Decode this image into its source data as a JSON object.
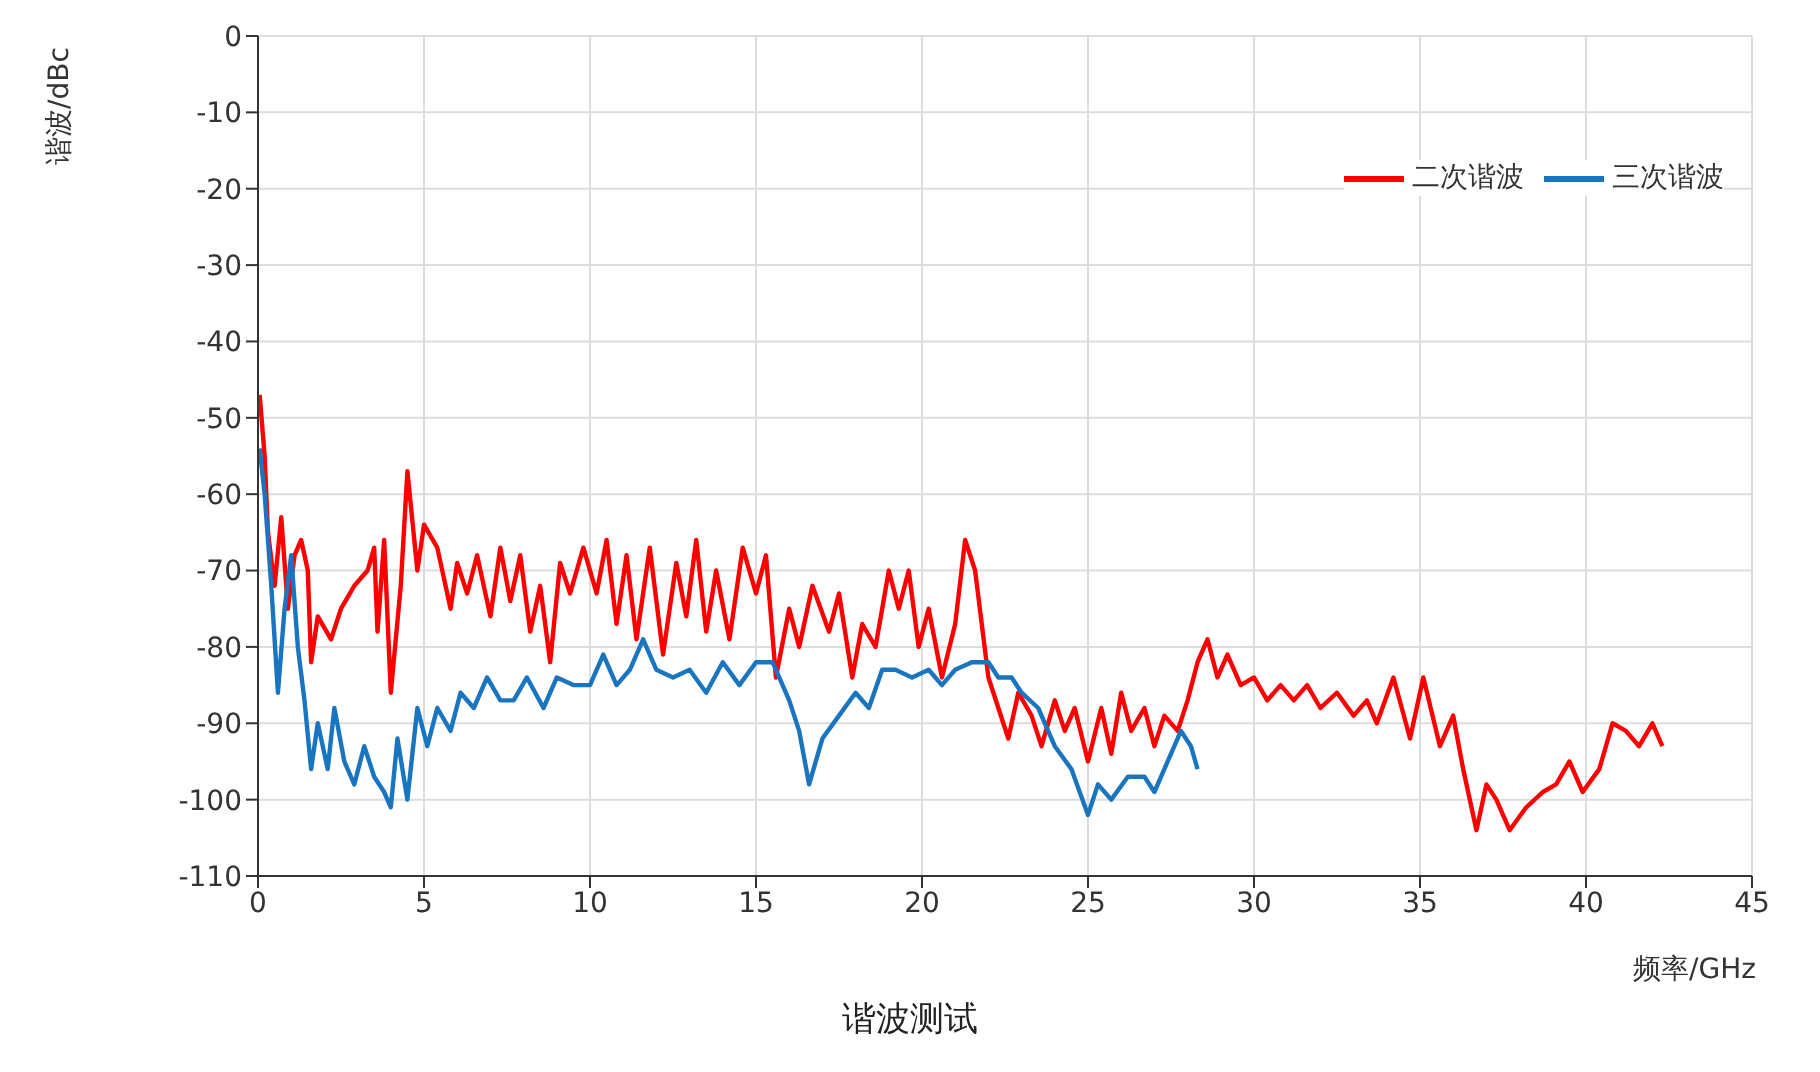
{
  "chart_data": {
    "type": "line",
    "title": "谐波测试",
    "xlabel": "频率/GHz",
    "ylabel": "谐波/dBc",
    "xlim": [
      0,
      45
    ],
    "xticks": [
      0,
      5,
      10,
      15,
      20,
      25,
      30,
      35,
      40,
      45
    ],
    "ylim": [
      -110,
      0
    ],
    "yticks": [
      0,
      -10,
      -20,
      -30,
      -40,
      -50,
      -60,
      -70,
      -80,
      -90,
      -100,
      -110
    ],
    "grid": true,
    "legend": "top right",
    "marker": "none",
    "line_style": "solid",
    "series": [
      {
        "name": "二次谐波",
        "color": "#ff0000",
        "x": [
          0.05,
          0.2,
          0.3,
          0.5,
          0.7,
          0.9,
          1.1,
          1.3,
          1.5,
          1.6,
          1.8,
          2.2,
          2.5,
          2.9,
          3.3,
          3.5,
          3.6,
          3.8,
          4.0,
          4.3,
          4.5,
          4.8,
          5.0,
          5.4,
          5.8,
          6.0,
          6.3,
          6.6,
          7.0,
          7.3,
          7.6,
          7.9,
          8.2,
          8.5,
          8.8,
          9.1,
          9.4,
          9.8,
          10.2,
          10.5,
          10.8,
          11.1,
          11.4,
          11.8,
          12.2,
          12.6,
          12.9,
          13.2,
          13.5,
          13.8,
          14.2,
          14.6,
          15.0,
          15.3,
          15.6,
          16.0,
          16.3,
          16.7,
          17.2,
          17.5,
          17.9,
          18.2,
          18.6,
          19.0,
          19.3,
          19.6,
          19.9,
          20.2,
          20.6,
          21.0,
          21.3,
          21.6,
          22.0,
          22.3,
          22.6,
          22.9,
          23.3,
          23.6,
          24.0,
          24.3,
          24.6,
          25.0,
          25.4,
          25.7,
          26.0,
          26.3,
          26.7,
          27.0,
          27.3,
          27.7,
          28.0,
          28.3,
          28.6,
          28.9,
          29.2,
          29.6,
          30.0,
          30.4,
          30.8,
          31.2,
          31.6,
          32.0,
          32.5,
          33.0,
          33.4,
          33.7,
          34.2,
          34.7,
          35.1,
          35.6,
          36.0,
          36.3,
          36.7,
          37.0,
          37.3,
          37.7,
          38.2,
          38.7,
          39.1,
          39.5,
          39.9,
          40.4,
          40.8,
          41.2,
          41.6,
          42.0,
          42.3
        ],
        "values": [
          -47,
          -55,
          -65,
          -72,
          -63,
          -75,
          -68,
          -66,
          -70,
          -82,
          -76,
          -79,
          -75,
          -72,
          -70,
          -67,
          -78,
          -66,
          -86,
          -72,
          -57,
          -70,
          -64,
          -67,
          -75,
          -69,
          -73,
          -68,
          -76,
          -67,
          -74,
          -68,
          -78,
          -72,
          -82,
          -69,
          -73,
          -67,
          -73,
          -66,
          -77,
          -68,
          -79,
          -67,
          -81,
          -69,
          -76,
          -66,
          -78,
          -70,
          -79,
          -67,
          -73,
          -68,
          -84,
          -75,
          -80,
          -72,
          -78,
          -73,
          -84,
          -77,
          -80,
          -70,
          -75,
          -70,
          -80,
          -75,
          -84,
          -77,
          -66,
          -70,
          -84,
          -88,
          -92,
          -86,
          -89,
          -93,
          -87,
          -91,
          -88,
          -95,
          -88,
          -94,
          -86,
          -91,
          -88,
          -93,
          -89,
          -91,
          -87,
          -82,
          -79,
          -84,
          -81,
          -85,
          -84,
          -87,
          -85,
          -87,
          -85,
          -88,
          -86,
          -89,
          -87,
          -90,
          -84,
          -92,
          -84,
          -93,
          -89,
          -96,
          -104,
          -98,
          -100,
          -104,
          -101,
          -99,
          -98,
          -95,
          -99,
          -96,
          -90,
          -91,
          -93,
          -90,
          -93
        ]
      },
      {
        "name": "三次谐波",
        "color": "#1a75c0",
        "x": [
          0.05,
          0.2,
          0.4,
          0.6,
          0.8,
          1.0,
          1.2,
          1.4,
          1.6,
          1.8,
          2.1,
          2.3,
          2.6,
          2.9,
          3.2,
          3.5,
          3.8,
          4.0,
          4.2,
          4.5,
          4.8,
          5.1,
          5.4,
          5.8,
          6.1,
          6.5,
          6.9,
          7.3,
          7.7,
          8.1,
          8.6,
          9.0,
          9.5,
          10.0,
          10.4,
          10.8,
          11.2,
          11.6,
          12.0,
          12.5,
          13.0,
          13.5,
          14.0,
          14.5,
          15.0,
          15.5,
          16.0,
          16.3,
          16.6,
          17.0,
          17.5,
          18.0,
          18.4,
          18.8,
          19.2,
          19.7,
          20.2,
          20.6,
          21.0,
          21.5,
          22.0,
          22.3,
          22.7,
          23.0,
          23.5,
          24.0,
          24.5,
          25.0,
          25.3,
          25.7,
          26.2,
          26.7,
          27.0,
          27.4,
          27.8,
          28.1,
          28.3
        ],
        "values": [
          -54,
          -60,
          -72,
          -86,
          -75,
          -68,
          -80,
          -87,
          -96,
          -90,
          -96,
          -88,
          -95,
          -98,
          -93,
          -97,
          -99,
          -101,
          -92,
          -100,
          -88,
          -93,
          -88,
          -91,
          -86,
          -88,
          -84,
          -87,
          -87,
          -84,
          -88,
          -84,
          -85,
          -85,
          -81,
          -85,
          -83,
          -79,
          -83,
          -84,
          -83,
          -86,
          -82,
          -85,
          -82,
          -82,
          -87,
          -91,
          -98,
          -92,
          -89,
          -86,
          -88,
          -83,
          -83,
          -84,
          -83,
          -85,
          -83,
          -82,
          -82,
          -84,
          -84,
          -86,
          -88,
          -93,
          -96,
          -102,
          -98,
          -100,
          -97,
          -97,
          -99,
          -95,
          -91,
          -93,
          -96
        ]
      }
    ]
  }
}
